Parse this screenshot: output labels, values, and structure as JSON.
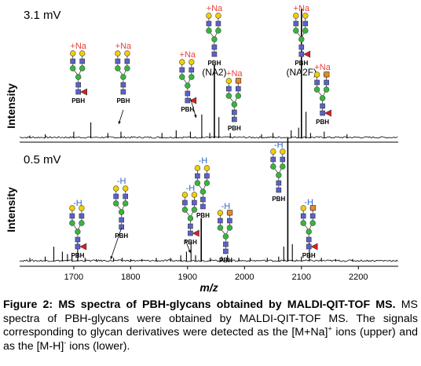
{
  "chart_data": [
    {
      "type": "line",
      "panel": "upper",
      "panel_label": "3.1 mV",
      "ylabel": "Intensity",
      "xlim": [
        1605,
        2270
      ],
      "ylim": [
        0,
        100
      ],
      "peaks": [
        {
          "x": 1623,
          "y": 2
        },
        {
          "x": 1650,
          "y": 3
        },
        {
          "x": 1700,
          "y": 5
        },
        {
          "x": 1730,
          "y": 12
        },
        {
          "x": 1760,
          "y": 4
        },
        {
          "x": 1783,
          "y": 5
        },
        {
          "x": 1855,
          "y": 4
        },
        {
          "x": 1880,
          "y": 6
        },
        {
          "x": 1905,
          "y": 5
        },
        {
          "x": 1925,
          "y": 18
        },
        {
          "x": 1939,
          "y": 4
        },
        {
          "x": 1947,
          "y": 56
        },
        {
          "x": 1955,
          "y": 16
        },
        {
          "x": 1975,
          "y": 4
        },
        {
          "x": 2030,
          "y": 3
        },
        {
          "x": 2050,
          "y": 4
        },
        {
          "x": 2082,
          "y": 6
        },
        {
          "x": 2095,
          "y": 8
        },
        {
          "x": 2100,
          "y": 98
        },
        {
          "x": 2108,
          "y": 20
        },
        {
          "x": 2116,
          "y": 4
        },
        {
          "x": 2140,
          "y": 5
        },
        {
          "x": 2180,
          "y": 3
        }
      ],
      "annotations": [
        {
          "x": 1708,
          "adduct": "+Na",
          "tag": "PBH",
          "name": ""
        },
        {
          "x": 1787,
          "adduct": "+Na",
          "tag": "PBH",
          "name": ""
        },
        {
          "x": 1900,
          "adduct": "+Na",
          "tag": "PBH",
          "name": ""
        },
        {
          "x": 1947,
          "adduct": "+Na",
          "tag": "PBH",
          "name": "(NA2)"
        },
        {
          "x": 1982,
          "adduct": "+Na",
          "tag": "PBH",
          "name": ""
        },
        {
          "x": 2100,
          "adduct": "+Na",
          "tag": "PBH",
          "name": "(NA2F)"
        },
        {
          "x": 2137,
          "adduct": "+Na",
          "tag": "PBH",
          "name": ""
        }
      ]
    },
    {
      "type": "line",
      "panel": "lower",
      "panel_label": "0.5 mV",
      "ylabel": "Intensity",
      "xlabel": "m/z",
      "xlim": [
        1605,
        2270
      ],
      "xticks": [
        1700,
        1800,
        1900,
        2000,
        2100,
        2200
      ],
      "ylim": [
        0,
        100
      ],
      "peaks": [
        {
          "x": 1623,
          "y": 3
        },
        {
          "x": 1650,
          "y": 4
        },
        {
          "x": 1665,
          "y": 12
        },
        {
          "x": 1680,
          "y": 8
        },
        {
          "x": 1689,
          "y": 6
        },
        {
          "x": 1697,
          "y": 6
        },
        {
          "x": 1707,
          "y": 19
        },
        {
          "x": 1720,
          "y": 3
        },
        {
          "x": 1740,
          "y": 2
        },
        {
          "x": 1770,
          "y": 3
        },
        {
          "x": 1785,
          "y": 3
        },
        {
          "x": 1800,
          "y": 2
        },
        {
          "x": 1820,
          "y": 2
        },
        {
          "x": 1845,
          "y": 3
        },
        {
          "x": 1870,
          "y": 3
        },
        {
          "x": 1888,
          "y": 5
        },
        {
          "x": 1898,
          "y": 8
        },
        {
          "x": 1906,
          "y": 16
        },
        {
          "x": 1914,
          "y": 5
        },
        {
          "x": 1924,
          "y": 35
        },
        {
          "x": 1940,
          "y": 3
        },
        {
          "x": 1960,
          "y": 4
        },
        {
          "x": 1970,
          "y": 5
        },
        {
          "x": 1990,
          "y": 3
        },
        {
          "x": 2010,
          "y": 3
        },
        {
          "x": 2040,
          "y": 3
        },
        {
          "x": 2060,
          "y": 4
        },
        {
          "x": 2069,
          "y": 12
        },
        {
          "x": 2076,
          "y": 100
        },
        {
          "x": 2084,
          "y": 14
        },
        {
          "x": 2100,
          "y": 4
        },
        {
          "x": 2114,
          "y": 15
        },
        {
          "x": 2135,
          "y": 3
        },
        {
          "x": 2160,
          "y": 2
        },
        {
          "x": 2190,
          "y": 2
        }
      ],
      "annotations": [
        {
          "x": 1707,
          "adduct": "-H",
          "tag": "PBH"
        },
        {
          "x": 1784,
          "adduct": "-H",
          "tag": "PBH"
        },
        {
          "x": 1905,
          "adduct": "-H",
          "tag": "PBH"
        },
        {
          "x": 1927,
          "adduct": "-H",
          "tag": "PBH"
        },
        {
          "x": 1967,
          "adduct": "-H",
          "tag": "PBH"
        },
        {
          "x": 2060,
          "adduct": "-H",
          "tag": "PBH"
        },
        {
          "x": 2113,
          "adduct": "-H",
          "tag": "PBH"
        }
      ]
    }
  ],
  "colors": {
    "sodium_adduct": "#e8413a",
    "deprotonated": "#2f64c8",
    "glcnac_square": "#5a62cc",
    "mannose_circle": "#33b83a",
    "galactose_circle": "#f2d000",
    "fucose_triangle": "#d62020",
    "sialic_square": "#e58a2a"
  },
  "caption": {
    "title": "Figure 2: MS spectra of PBH-glycans obtained by MALDI-QIT-TOF MS.",
    "body_pre": "MS spectra of PBH-glycans were obtained by MALDI-QIT-TOF MS. The signals corresponding to glycan derivatives were detected as the [M+Na]",
    "sup1": "+",
    "body_mid": " ions (upper) and as the [M-H]",
    "sup2": "-",
    "body_post": " ions (lower)."
  }
}
